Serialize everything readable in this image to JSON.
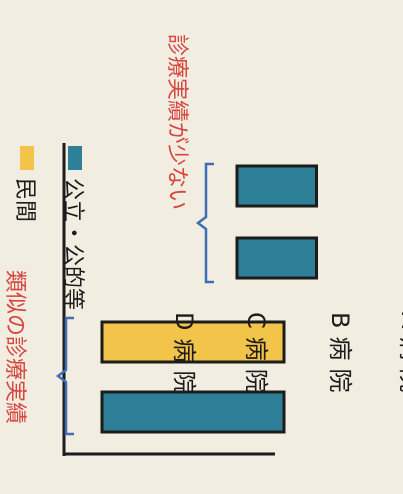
{
  "chart_data": {
    "type": "bar",
    "orientation": "horizontal-bars (page rotated 90°)",
    "categories": [
      "A病院",
      "B病院",
      "C病院",
      "D病院"
    ],
    "series": [
      {
        "name": "民間",
        "color": "#f2c449",
        "values": [
          null,
          100,
          null,
          null
        ]
      },
      {
        "name": "公立・公的等",
        "color": "#2e7f98",
        "values": [
          100,
          null,
          25,
          25
        ]
      }
    ],
    "legend": [
      {
        "label": "民間",
        "color": "#f2c449"
      },
      {
        "label": "公立・公的等",
        "color": "#2e7f98"
      }
    ],
    "annotations": [
      {
        "text": "類似の診療実績",
        "color": "#d8443e",
        "brace_color": "#3f6fb6",
        "spans": [
          "A病院",
          "B病院"
        ]
      },
      {
        "text": "診療実績が少ない",
        "color": "#d8443e",
        "brace_color": "#3f6fb6",
        "spans": [
          "C病院",
          "D病院"
        ]
      }
    ],
    "xlim": [
      0,
      100
    ],
    "grid": false
  }
}
